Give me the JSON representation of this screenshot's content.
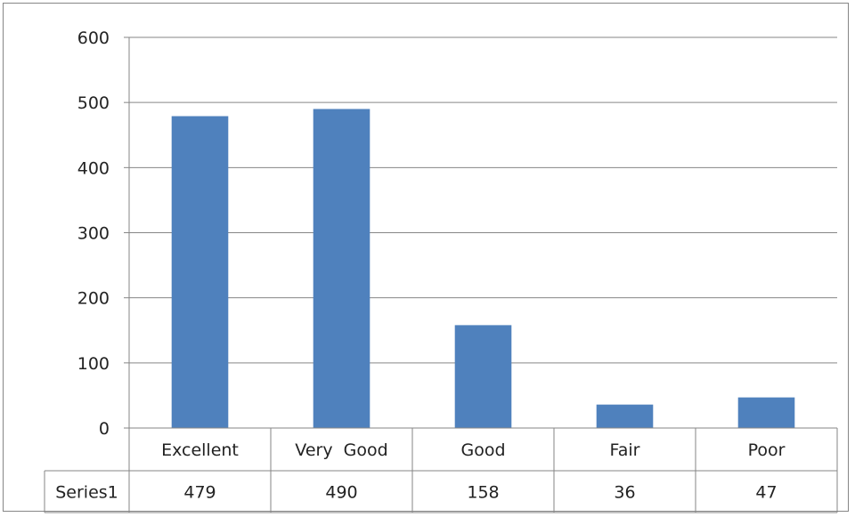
{
  "chart_data": {
    "type": "bar",
    "categories": [
      "Excellent",
      "Very  Good",
      "Good",
      "Fair",
      "Poor"
    ],
    "series": [
      {
        "name": "Series1",
        "values": [
          479,
          490,
          158,
          36,
          47
        ]
      }
    ],
    "ylim": [
      0,
      600
    ],
    "yticks": [
      0,
      100,
      200,
      300,
      400,
      500,
      600
    ],
    "grid": true,
    "data_table": true,
    "colors": {
      "bar": "#4f81bd",
      "grid": "#868686",
      "axis": "#868686",
      "text": "#222222"
    }
  }
}
